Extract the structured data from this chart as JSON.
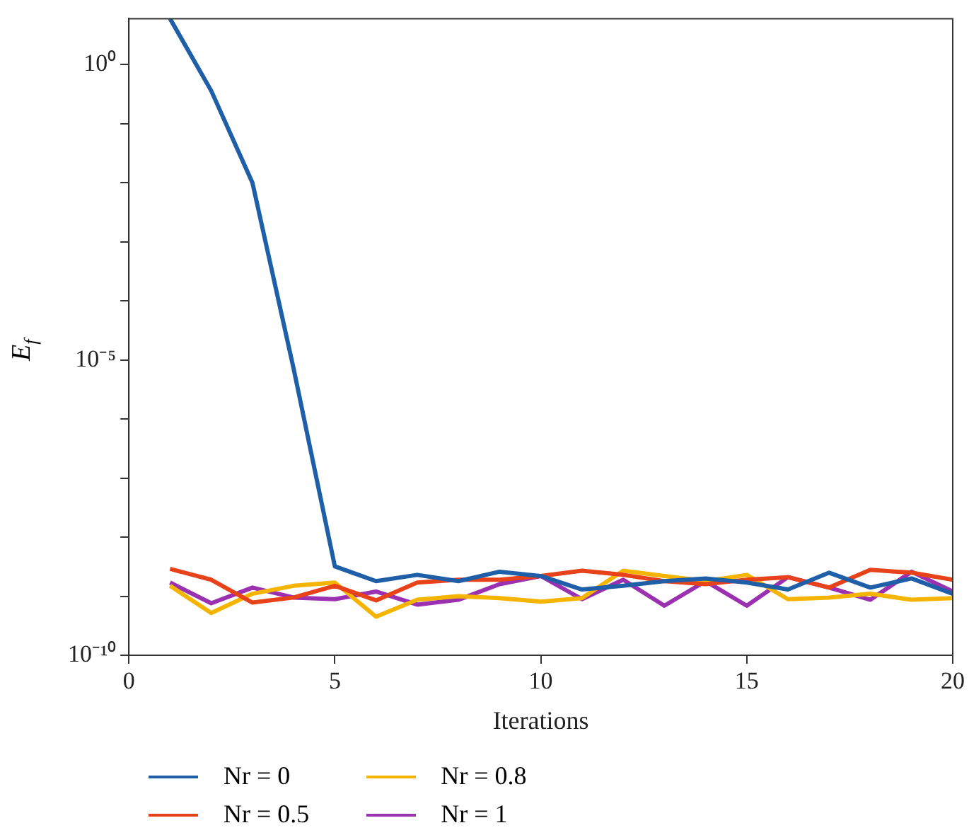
{
  "chart_data": {
    "type": "line",
    "xlabel": "Iterations",
    "ylabel": "E$_{f}$",
    "log": "y",
    "xlim": [
      0,
      20
    ],
    "xticks": [
      0,
      5,
      10,
      15,
      20
    ],
    "ylim": [
      1e-10,
      6
    ],
    "yticks": [
      {
        "value": 1e-10,
        "label": "10⁻¹⁰"
      },
      {
        "value": 1e-09,
        "label": null
      },
      {
        "value": 1e-08,
        "label": null
      },
      {
        "value": 1e-07,
        "label": null
      },
      {
        "value": 1e-06,
        "label": null
      },
      {
        "value": 1e-05,
        "label": "10⁻⁵"
      },
      {
        "value": 0.0001,
        "label": null
      },
      {
        "value": 0.001,
        "label": null
      },
      {
        "value": 0.01,
        "label": null
      },
      {
        "value": 0.1,
        "label": null
      },
      {
        "value": 1,
        "label": "10⁰"
      }
    ],
    "x": [
      1,
      2,
      3,
      4,
      5,
      6,
      7,
      8,
      9,
      10,
      11,
      12,
      13,
      14,
      15,
      16,
      17,
      18,
      19,
      20
    ],
    "legend": "bottom left",
    "marker": "none",
    "line_style": "solid",
    "series": [
      {
        "name": "Nr = 0",
        "color": "#1f5fa8",
        "values": [
          6,
          0.36,
          0.01,
          7.1e-06,
          3.2e-09,
          1.8e-09,
          2.3e-09,
          1.8e-09,
          2.6e-09,
          2.2e-09,
          1.3e-09,
          1.5e-09,
          1.8e-09,
          2e-09,
          1.7e-09,
          1.3e-09,
          2.5e-09,
          1.4e-09,
          2e-09,
          1.1e-09
        ]
      },
      {
        "name": "Nr = 0.5",
        "color": "#e8421a",
        "values": [
          2.9e-09,
          1.9e-09,
          7.8e-10,
          9.5e-10,
          1.5e-09,
          8.5e-10,
          1.7e-09,
          1.9e-09,
          1.9e-09,
          2.2e-09,
          2.7e-09,
          2.3e-09,
          1.8e-09,
          1.6e-09,
          1.9e-09,
          2.1e-09,
          1.4e-09,
          2.8e-09,
          2.5e-09,
          1.9e-09
        ]
      },
      {
        "name": "Nr = 0.8",
        "color": "#f4b400",
        "values": [
          1.5e-09,
          5.2e-10,
          1.1e-09,
          1.5e-09,
          1.7e-09,
          4.5e-10,
          8.7e-10,
          1e-09,
          9.3e-10,
          8.1e-10,
          9.3e-10,
          2.7e-09,
          2.2e-09,
          1.8e-09,
          2.3e-09,
          8.9e-10,
          9.5e-10,
          1.1e-09,
          8.7e-10,
          9.3e-10
        ]
      },
      {
        "name": "Nr = 1",
        "color": "#9b30b0",
        "values": [
          1.7e-09,
          7.6e-10,
          1.4e-09,
          9.5e-10,
          8.9e-10,
          1.2e-09,
          7.2e-10,
          8.7e-10,
          1.6e-09,
          2.2e-09,
          8.9e-10,
          1.9e-09,
          6.9e-10,
          1.8e-09,
          6.9e-10,
          2.1e-09,
          1.4e-09,
          8.7e-10,
          2.6e-09,
          1.2e-09
        ]
      }
    ]
  }
}
